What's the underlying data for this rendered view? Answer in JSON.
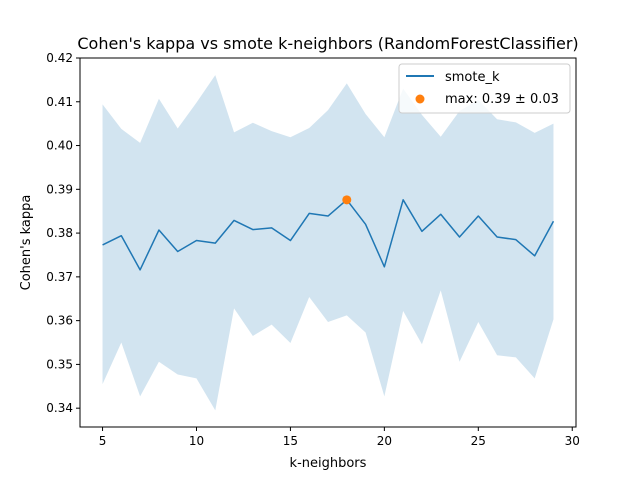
{
  "chart_data": {
    "type": "line",
    "title": "Cohen's kappa vs smote k-neighbors (RandomForestClassifier)",
    "xlabel": "k-neighbors",
    "ylabel": "Cohen's kappa",
    "xlim": [
      3.8,
      30.2
    ],
    "ylim": [
      0.3357,
      0.42
    ],
    "xticks": [
      5,
      10,
      15,
      20,
      25,
      30
    ],
    "yticks": [
      0.34,
      0.35,
      0.36,
      0.37,
      0.38,
      0.39,
      0.4,
      0.41,
      0.42
    ],
    "xtick_labels": [
      "5",
      "10",
      "15",
      "20",
      "25",
      "30"
    ],
    "ytick_labels": [
      "0.34",
      "0.35",
      "0.36",
      "0.37",
      "0.38",
      "0.39",
      "0.40",
      "0.41",
      "0.42"
    ],
    "grid": false,
    "legend_position": "upper right",
    "series": [
      {
        "name": "smote_k",
        "color": "#1f77b4",
        "x": [
          5,
          6,
          7,
          8,
          9,
          10,
          11,
          12,
          13,
          14,
          15,
          16,
          17,
          18,
          19,
          20,
          21,
          22,
          23,
          24,
          25,
          26,
          27,
          28,
          29
        ],
        "y": [
          0.3773,
          0.3794,
          0.3716,
          0.3807,
          0.3758,
          0.3783,
          0.3777,
          0.3829,
          0.3808,
          0.3812,
          0.3783,
          0.3845,
          0.3839,
          0.3876,
          0.382,
          0.3723,
          0.3876,
          0.3804,
          0.3843,
          0.3791,
          0.3839,
          0.3791,
          0.3785,
          0.3748,
          0.3827
        ],
        "band_upper": [
          0.4094,
          0.4038,
          0.4006,
          0.4107,
          0.4039,
          0.4098,
          0.4161,
          0.403,
          0.4052,
          0.4033,
          0.4019,
          0.404,
          0.4081,
          0.4142,
          0.4072,
          0.4019,
          0.413,
          0.407,
          0.402,
          0.4079,
          0.4104,
          0.406,
          0.4053,
          0.4029,
          0.405
        ],
        "band_lower": [
          0.3455,
          0.355,
          0.3427,
          0.3506,
          0.3477,
          0.3468,
          0.3395,
          0.3628,
          0.3565,
          0.3591,
          0.3549,
          0.3654,
          0.3597,
          0.3612,
          0.3573,
          0.3427,
          0.3622,
          0.3546,
          0.3669,
          0.3506,
          0.3597,
          0.3521,
          0.3516,
          0.3468,
          0.3603
        ],
        "band_color": "#1f77b4",
        "band_alpha": 0.2
      }
    ],
    "highlight": {
      "label": "max: 0.39 ± 0.03",
      "x": 18,
      "y": 0.3876,
      "color": "#ff7f0e"
    }
  }
}
